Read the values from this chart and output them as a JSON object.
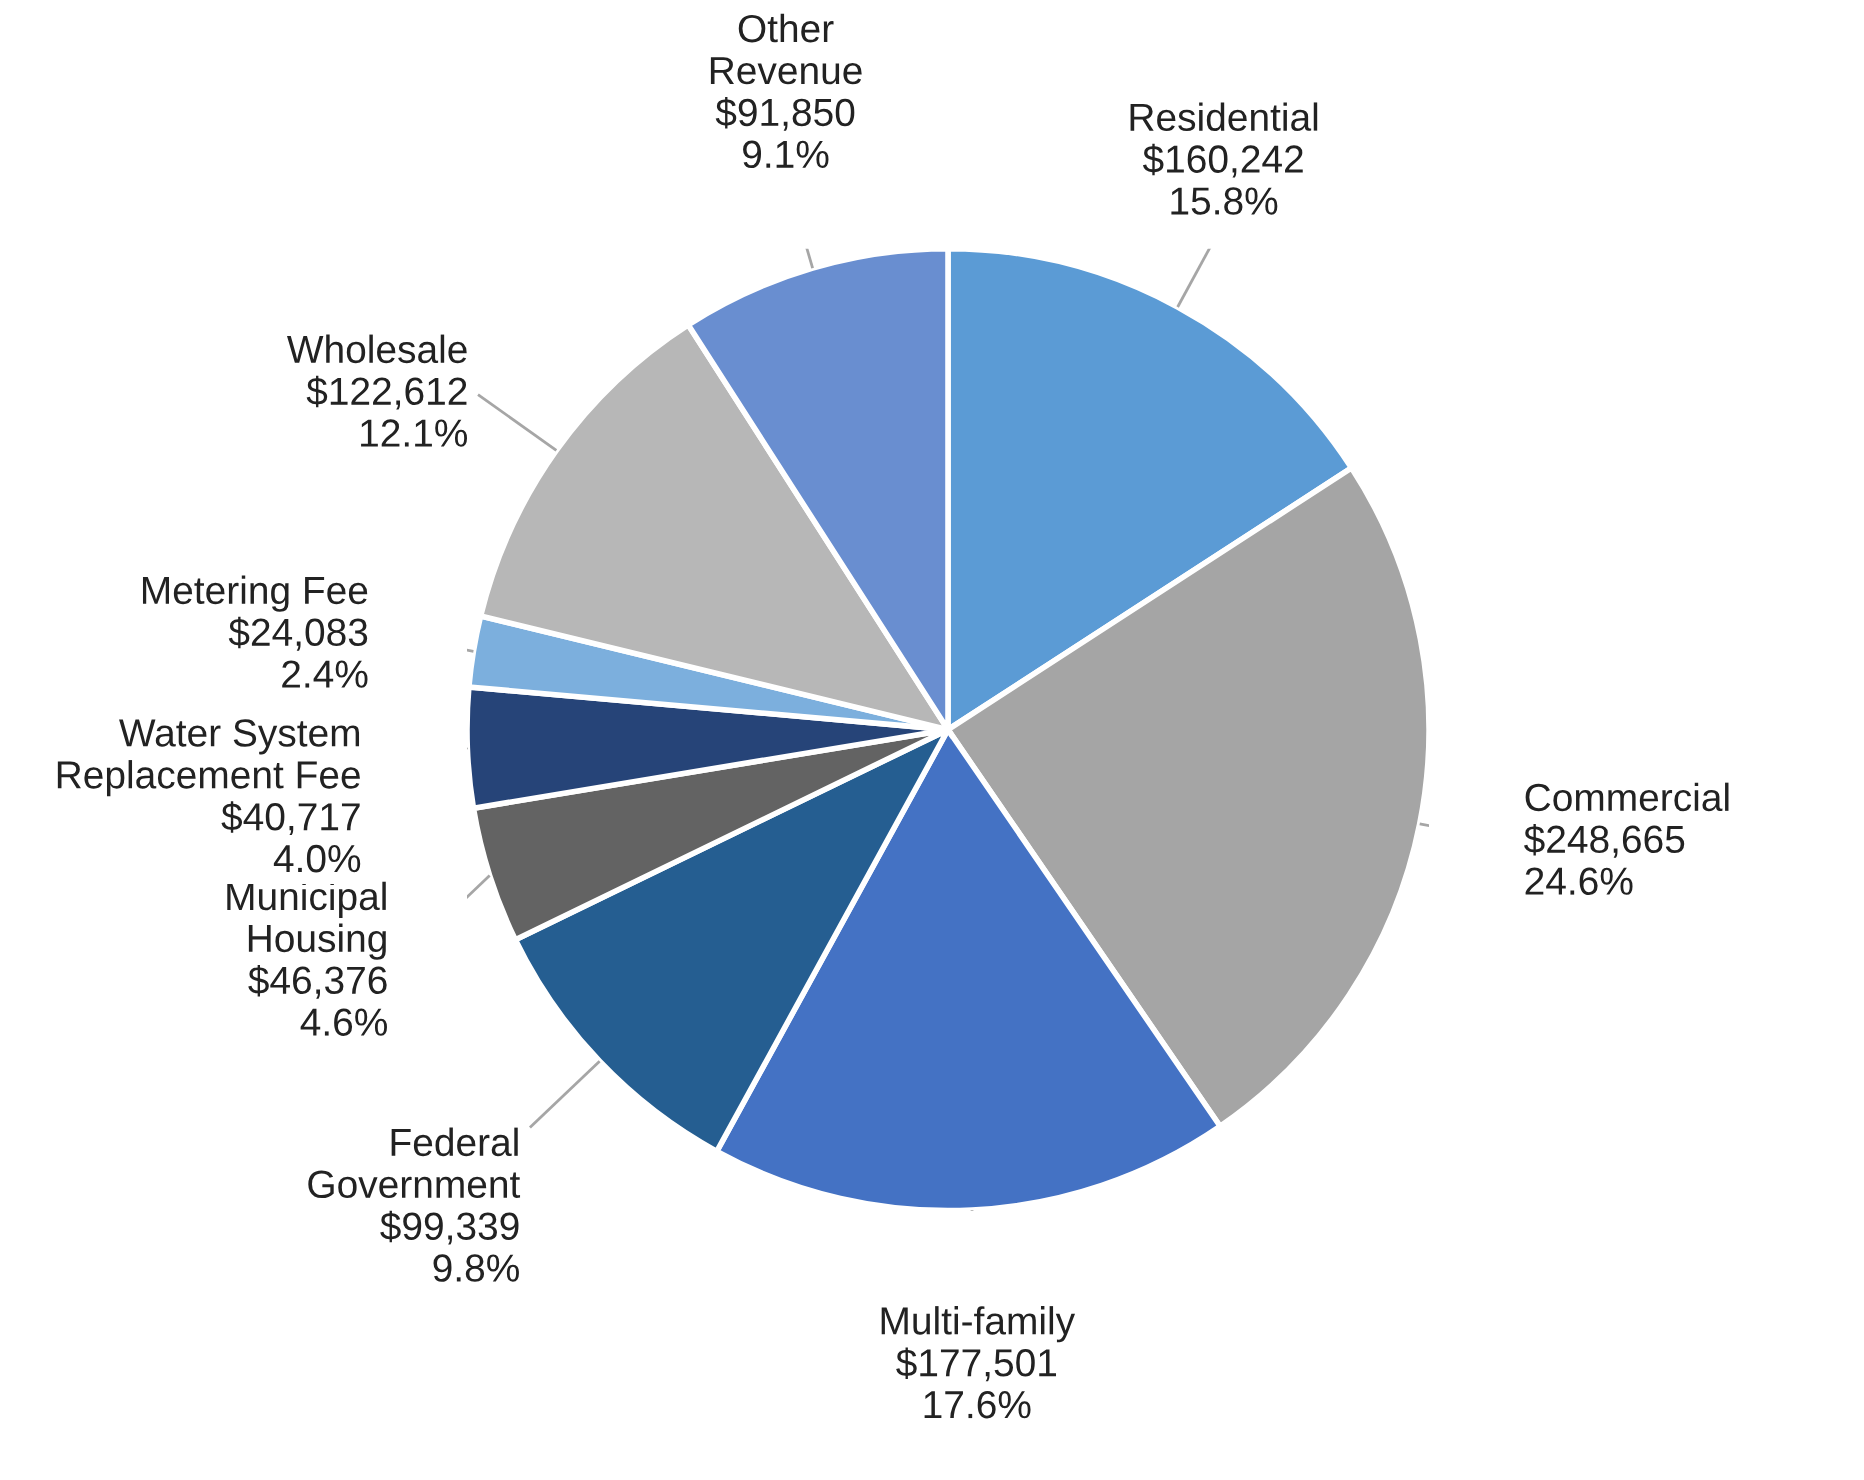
{
  "chart_data": {
    "type": "pie",
    "categories": [
      "Residential",
      "Commercial",
      "Multi-family",
      "Federal Government",
      "Municipal Housing",
      "Water System Replacement Fee",
      "Metering Fee",
      "Wholesale",
      "Other Revenue"
    ],
    "values": [
      160242,
      248665,
      177501,
      99339,
      46376,
      40717,
      24083,
      122612,
      91850
    ],
    "colors": [
      "#5b9bd5",
      "#a5a5a5",
      "#4472c4",
      "#255e91",
      "#636363",
      "#264478",
      "#7cafdd",
      "#b7b7b7",
      "#698ed0"
    ],
    "value_labels": [
      "$160,242\n15.8%",
      "$248,665\n24.6%",
      "$177,501\n17.6%",
      "$99,339\n9.8%",
      "$46,376\n4.6%",
      "$40,717\n4.0%",
      "$24,083\n2.4%",
      "$122,612\n12.1%",
      "$91,850\n9.1%"
    ],
    "legend": false
  }
}
